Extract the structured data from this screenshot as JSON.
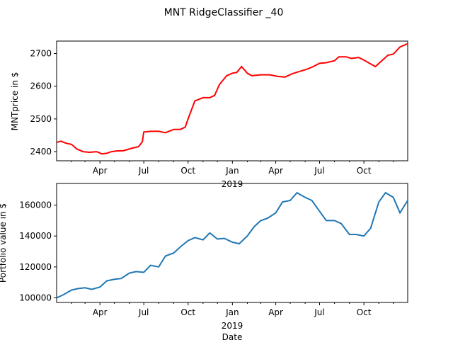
{
  "chart_data": [
    {
      "type": "line",
      "title": "MNT RidgeClassifier _40",
      "xlabel": "",
      "ylabel": "MNTprice in $",
      "x_ticks": [
        "Apr",
        "Jul",
        "Oct",
        "Jan",
        "Apr",
        "Jul",
        "Oct"
      ],
      "x_year_label": "2019",
      "xlim": [
        "2018-01-01",
        "2019-12-31"
      ],
      "y_ticks": [
        2400,
        2500,
        2600,
        2700
      ],
      "ylim": [
        2372,
        2738
      ],
      "series": [
        {
          "color": "#ff0000",
          "x": [
            "2018-01-01",
            "2018-01-10",
            "2018-01-20",
            "2018-02-01",
            "2018-02-12",
            "2018-02-25",
            "2018-03-10",
            "2018-03-25",
            "2018-04-05",
            "2018-04-15",
            "2018-04-25",
            "2018-05-05",
            "2018-05-20",
            "2018-06-05",
            "2018-06-20",
            "2018-06-28",
            "2018-07-01",
            "2018-07-15",
            "2018-08-01",
            "2018-08-15",
            "2018-09-01",
            "2018-09-15",
            "2018-09-25",
            "2018-10-01",
            "2018-10-15",
            "2018-11-01",
            "2018-11-15",
            "2018-11-25",
            "2018-12-05",
            "2018-12-20",
            "2019-01-01",
            "2019-01-10",
            "2019-01-20",
            "2019-02-01",
            "2019-02-10",
            "2019-03-01",
            "2019-03-20",
            "2019-04-05",
            "2019-04-20",
            "2019-05-05",
            "2019-05-20",
            "2019-06-05",
            "2019-06-15",
            "2019-07-01",
            "2019-07-15",
            "2019-08-01",
            "2019-08-10",
            "2019-08-25",
            "2019-09-05",
            "2019-09-20",
            "2019-10-01",
            "2019-10-15",
            "2019-10-25",
            "2019-11-05",
            "2019-11-20",
            "2019-12-01",
            "2019-12-15",
            "2019-12-31"
          ],
          "y": [
            2428,
            2432,
            2426,
            2422,
            2408,
            2400,
            2398,
            2400,
            2393,
            2395,
            2400,
            2402,
            2403,
            2410,
            2415,
            2430,
            2460,
            2462,
            2462,
            2458,
            2468,
            2468,
            2475,
            2500,
            2555,
            2565,
            2565,
            2572,
            2605,
            2632,
            2640,
            2642,
            2660,
            2640,
            2632,
            2635,
            2635,
            2630,
            2628,
            2638,
            2645,
            2652,
            2658,
            2670,
            2672,
            2678,
            2690,
            2690,
            2685,
            2688,
            2680,
            2668,
            2660,
            2675,
            2695,
            2698,
            2720,
            2730
          ]
        }
      ]
    },
    {
      "type": "line",
      "title": "",
      "xlabel": "Date",
      "ylabel": "Portfolio value in $",
      "x_ticks": [
        "Apr",
        "Jul",
        "Oct",
        "Jan",
        "Apr",
        "Jul",
        "Oct"
      ],
      "x_year_label": "2019",
      "xlim": [
        "2018-01-01",
        "2019-12-31"
      ],
      "y_ticks": [
        100000,
        120000,
        140000,
        160000
      ],
      "ylim": [
        97000,
        174000
      ],
      "series": [
        {
          "color": "#1f77b4",
          "x": [
            "2018-01-01",
            "2018-01-15",
            "2018-02-01",
            "2018-02-15",
            "2018-03-01",
            "2018-03-15",
            "2018-04-01",
            "2018-04-15",
            "2018-05-01",
            "2018-05-15",
            "2018-06-01",
            "2018-06-15",
            "2018-07-01",
            "2018-07-15",
            "2018-08-01",
            "2018-08-15",
            "2018-09-01",
            "2018-09-15",
            "2018-10-01",
            "2018-10-15",
            "2018-11-01",
            "2018-11-15",
            "2018-12-01",
            "2018-12-15",
            "2019-01-01",
            "2019-01-15",
            "2019-02-01",
            "2019-02-15",
            "2019-03-01",
            "2019-03-15",
            "2019-04-01",
            "2019-04-15",
            "2019-05-01",
            "2019-05-15",
            "2019-06-01",
            "2019-06-15",
            "2019-07-01",
            "2019-07-15",
            "2019-08-01",
            "2019-08-15",
            "2019-09-01",
            "2019-09-15",
            "2019-10-01",
            "2019-10-15",
            "2019-11-01",
            "2019-11-15",
            "2019-12-01",
            "2019-12-15",
            "2019-12-31"
          ],
          "y": [
            100000,
            102000,
            105000,
            106000,
            106500,
            105500,
            107000,
            111000,
            112000,
            112500,
            116000,
            117000,
            116500,
            121000,
            120000,
            127000,
            129000,
            133000,
            137000,
            139000,
            137500,
            142000,
            138000,
            138500,
            136000,
            135000,
            140000,
            146000,
            150000,
            151500,
            155000,
            162000,
            163000,
            168000,
            165000,
            163000,
            156000,
            150000,
            150000,
            148000,
            141000,
            141000,
            140000,
            145000,
            162000,
            168000,
            165000,
            155000,
            163000
          ]
        }
      ]
    }
  ]
}
